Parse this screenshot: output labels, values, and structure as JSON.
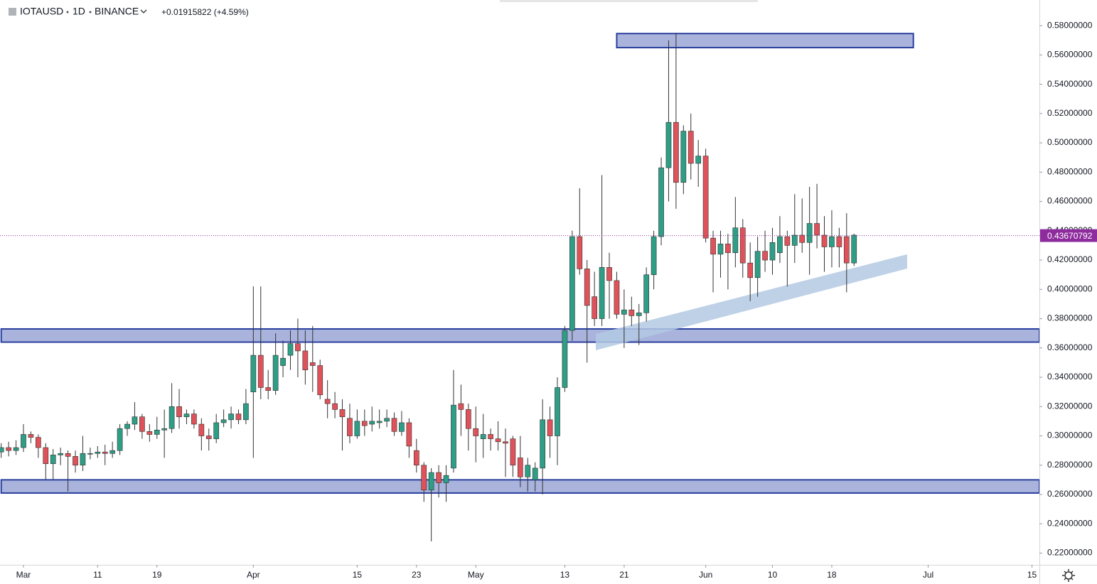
{
  "header": {
    "symbol": "IOTAUSD",
    "interval": "1D",
    "exchange": "BINANCE",
    "change": "+0.01915822 (+4.59%)"
  },
  "chart_data": {
    "type": "candlestick",
    "up_color": "#2e9e86",
    "down_color": "#e0525a",
    "wick_color": "#333333",
    "ylim": [
      0.212,
      0.5975
    ],
    "xlim": [
      "02-26",
      "07-16"
    ],
    "grid": false,
    "yticks": [
      {
        "value": 0.22,
        "label": "0.22000000"
      },
      {
        "value": 0.24,
        "label": "0.24000000"
      },
      {
        "value": 0.26,
        "label": "0.26000000"
      },
      {
        "value": 0.28,
        "label": "0.28000000"
      },
      {
        "value": 0.3,
        "label": "0.30000000"
      },
      {
        "value": 0.32,
        "label": "0.32000000"
      },
      {
        "value": 0.34,
        "label": "0.34000000"
      },
      {
        "value": 0.36,
        "label": "0.36000000"
      },
      {
        "value": 0.38,
        "label": "0.38000000"
      },
      {
        "value": 0.4,
        "label": "0.40000000"
      },
      {
        "value": 0.42,
        "label": "0.42000000"
      },
      {
        "value": 0.44,
        "label": "0.44000000"
      },
      {
        "value": 0.46,
        "label": "0.46000000"
      },
      {
        "value": 0.48,
        "label": "0.48000000"
      },
      {
        "value": 0.5,
        "label": "0.50000000"
      },
      {
        "value": 0.52,
        "label": "0.52000000"
      },
      {
        "value": 0.54,
        "label": "0.54000000"
      },
      {
        "value": 0.56,
        "label": "0.56000000"
      },
      {
        "value": 0.58,
        "label": "0.58000000"
      }
    ],
    "xticks": [
      {
        "value": "03-01",
        "label": "Mar"
      },
      {
        "value": "03-11",
        "label": "11"
      },
      {
        "value": "03-19",
        "label": "19"
      },
      {
        "value": "04-01",
        "label": "Apr"
      },
      {
        "value": "04-15",
        "label": "15"
      },
      {
        "value": "04-23",
        "label": "23"
      },
      {
        "value": "05-01",
        "label": "May"
      },
      {
        "value": "05-13",
        "label": "13"
      },
      {
        "value": "05-21",
        "label": "21"
      },
      {
        "value": "06-01",
        "label": "Jun"
      },
      {
        "value": "06-10",
        "label": "10"
      },
      {
        "value": "06-18",
        "label": "18"
      },
      {
        "value": "07-01",
        "label": "Jul"
      },
      {
        "value": "07-15",
        "label": "15"
      }
    ],
    "last_price": {
      "value": 0.43670792,
      "label": "0.43670792",
      "color": "#8e2c9e"
    },
    "zones": [
      {
        "low": 0.565,
        "high": 0.5746,
        "from": "05-20",
        "to": "06-29",
        "fill": "#9aa6d6",
        "stroke": "#2a3f9f"
      },
      {
        "low": 0.364,
        "high": 0.373,
        "from": "02-26",
        "to": "07-16",
        "fill": "#9aa6d6",
        "stroke": "#2a3f9f"
      },
      {
        "low": 0.261,
        "high": 0.27,
        "from": "02-26",
        "to": "07-16",
        "fill": "#9aa6d6",
        "stroke": "#2a3f9f"
      }
    ],
    "candles": [
      {
        "date": "02-26",
        "open": 0.289,
        "high": 0.295,
        "low": 0.285,
        "close": 0.292
      },
      {
        "date": "02-27",
        "open": 0.292,
        "high": 0.296,
        "low": 0.286,
        "close": 0.29
      },
      {
        "date": "02-28",
        "open": 0.29,
        "high": 0.297,
        "low": 0.287,
        "close": 0.292
      },
      {
        "date": "03-01",
        "open": 0.292,
        "high": 0.308,
        "low": 0.289,
        "close": 0.301
      },
      {
        "date": "03-02",
        "open": 0.301,
        "high": 0.303,
        "low": 0.295,
        "close": 0.299
      },
      {
        "date": "03-03",
        "open": 0.299,
        "high": 0.301,
        "low": 0.285,
        "close": 0.292
      },
      {
        "date": "03-04",
        "open": 0.292,
        "high": 0.295,
        "low": 0.27,
        "close": 0.281
      },
      {
        "date": "03-05",
        "open": 0.281,
        "high": 0.291,
        "low": 0.27,
        "close": 0.287
      },
      {
        "date": "03-06",
        "open": 0.287,
        "high": 0.292,
        "low": 0.28,
        "close": 0.288
      },
      {
        "date": "03-07",
        "open": 0.288,
        "high": 0.29,
        "low": 0.262,
        "close": 0.286
      },
      {
        "date": "03-08",
        "open": 0.286,
        "high": 0.29,
        "low": 0.275,
        "close": 0.28
      },
      {
        "date": "03-09",
        "open": 0.28,
        "high": 0.3,
        "low": 0.276,
        "close": 0.288
      },
      {
        "date": "03-10",
        "open": 0.288,
        "high": 0.292,
        "low": 0.284,
        "close": 0.288
      },
      {
        "date": "03-11",
        "open": 0.288,
        "high": 0.293,
        "low": 0.285,
        "close": 0.289
      },
      {
        "date": "03-12",
        "open": 0.289,
        "high": 0.294,
        "low": 0.28,
        "close": 0.288
      },
      {
        "date": "03-13",
        "open": 0.288,
        "high": 0.296,
        "low": 0.285,
        "close": 0.29
      },
      {
        "date": "03-14",
        "open": 0.29,
        "high": 0.308,
        "low": 0.287,
        "close": 0.305
      },
      {
        "date": "03-15",
        "open": 0.305,
        "high": 0.31,
        "low": 0.3,
        "close": 0.308
      },
      {
        "date": "03-16",
        "open": 0.308,
        "high": 0.323,
        "low": 0.304,
        "close": 0.313
      },
      {
        "date": "03-17",
        "open": 0.313,
        "high": 0.315,
        "low": 0.298,
        "close": 0.303
      },
      {
        "date": "03-18",
        "open": 0.303,
        "high": 0.308,
        "low": 0.296,
        "close": 0.301
      },
      {
        "date": "03-19",
        "open": 0.301,
        "high": 0.313,
        "low": 0.298,
        "close": 0.304
      },
      {
        "date": "03-20",
        "open": 0.304,
        "high": 0.318,
        "low": 0.285,
        "close": 0.305
      },
      {
        "date": "03-21",
        "open": 0.305,
        "high": 0.336,
        "low": 0.302,
        "close": 0.32
      },
      {
        "date": "03-22",
        "open": 0.32,
        "high": 0.332,
        "low": 0.305,
        "close": 0.313
      },
      {
        "date": "03-23",
        "open": 0.313,
        "high": 0.318,
        "low": 0.308,
        "close": 0.315
      },
      {
        "date": "03-24",
        "open": 0.315,
        "high": 0.318,
        "low": 0.305,
        "close": 0.308
      },
      {
        "date": "03-25",
        "open": 0.308,
        "high": 0.312,
        "low": 0.29,
        "close": 0.3
      },
      {
        "date": "03-26",
        "open": 0.3,
        "high": 0.305,
        "low": 0.29,
        "close": 0.298
      },
      {
        "date": "03-27",
        "open": 0.298,
        "high": 0.315,
        "low": 0.295,
        "close": 0.309
      },
      {
        "date": "03-28",
        "open": 0.309,
        "high": 0.318,
        "low": 0.306,
        "close": 0.311
      },
      {
        "date": "03-29",
        "open": 0.311,
        "high": 0.32,
        "low": 0.305,
        "close": 0.315
      },
      {
        "date": "03-30",
        "open": 0.315,
        "high": 0.318,
        "low": 0.308,
        "close": 0.311
      },
      {
        "date": "03-31",
        "open": 0.311,
        "high": 0.332,
        "low": 0.308,
        "close": 0.322
      },
      {
        "date": "04-01",
        "open": 0.33,
        "high": 0.402,
        "low": 0.285,
        "close": 0.355
      },
      {
        "date": "04-02",
        "open": 0.355,
        "high": 0.402,
        "low": 0.325,
        "close": 0.333
      },
      {
        "date": "04-03",
        "open": 0.333,
        "high": 0.345,
        "low": 0.325,
        "close": 0.331
      },
      {
        "date": "04-04",
        "open": 0.331,
        "high": 0.37,
        "low": 0.328,
        "close": 0.355
      },
      {
        "date": "04-05",
        "open": 0.348,
        "high": 0.365,
        "low": 0.34,
        "close": 0.353
      },
      {
        "date": "04-06",
        "open": 0.355,
        "high": 0.372,
        "low": 0.345,
        "close": 0.363
      },
      {
        "date": "04-07",
        "open": 0.363,
        "high": 0.38,
        "low": 0.34,
        "close": 0.358
      },
      {
        "date": "04-08",
        "open": 0.358,
        "high": 0.372,
        "low": 0.335,
        "close": 0.345
      },
      {
        "date": "04-09",
        "open": 0.35,
        "high": 0.375,
        "low": 0.33,
        "close": 0.348
      },
      {
        "date": "04-10",
        "open": 0.348,
        "high": 0.352,
        "low": 0.325,
        "close": 0.328
      },
      {
        "date": "04-11",
        "open": 0.325,
        "high": 0.338,
        "low": 0.312,
        "close": 0.322
      },
      {
        "date": "04-12",
        "open": 0.322,
        "high": 0.33,
        "low": 0.312,
        "close": 0.318
      },
      {
        "date": "04-13",
        "open": 0.318,
        "high": 0.325,
        "low": 0.29,
        "close": 0.313
      },
      {
        "date": "04-14",
        "open": 0.312,
        "high": 0.322,
        "low": 0.295,
        "close": 0.3
      },
      {
        "date": "04-15",
        "open": 0.3,
        "high": 0.318,
        "low": 0.298,
        "close": 0.31
      },
      {
        "date": "04-16",
        "open": 0.31,
        "high": 0.318,
        "low": 0.3,
        "close": 0.307
      },
      {
        "date": "04-17",
        "open": 0.308,
        "high": 0.32,
        "low": 0.303,
        "close": 0.31
      },
      {
        "date": "04-18",
        "open": 0.309,
        "high": 0.318,
        "low": 0.305,
        "close": 0.31
      },
      {
        "date": "04-19",
        "open": 0.31,
        "high": 0.318,
        "low": 0.306,
        "close": 0.312
      },
      {
        "date": "04-20",
        "open": 0.312,
        "high": 0.316,
        "low": 0.3,
        "close": 0.303
      },
      {
        "date": "04-21",
        "open": 0.303,
        "high": 0.317,
        "low": 0.3,
        "close": 0.309
      },
      {
        "date": "04-22",
        "open": 0.309,
        "high": 0.312,
        "low": 0.285,
        "close": 0.293
      },
      {
        "date": "04-23",
        "open": 0.29,
        "high": 0.298,
        "low": 0.275,
        "close": 0.28
      },
      {
        "date": "04-24",
        "open": 0.28,
        "high": 0.282,
        "low": 0.255,
        "close": 0.263
      },
      {
        "date": "04-25",
        "open": 0.263,
        "high": 0.278,
        "low": 0.228,
        "close": 0.275
      },
      {
        "date": "04-26",
        "open": 0.275,
        "high": 0.28,
        "low": 0.258,
        "close": 0.268
      },
      {
        "date": "04-27",
        "open": 0.268,
        "high": 0.28,
        "low": 0.255,
        "close": 0.273
      },
      {
        "date": "04-28",
        "open": 0.278,
        "high": 0.345,
        "low": 0.275,
        "close": 0.321
      },
      {
        "date": "04-29",
        "open": 0.322,
        "high": 0.335,
        "low": 0.3,
        "close": 0.318
      },
      {
        "date": "04-30",
        "open": 0.318,
        "high": 0.322,
        "low": 0.29,
        "close": 0.305
      },
      {
        "date": "05-01",
        "open": 0.305,
        "high": 0.32,
        "low": 0.282,
        "close": 0.3
      },
      {
        "date": "05-02",
        "open": 0.298,
        "high": 0.315,
        "low": 0.285,
        "close": 0.301
      },
      {
        "date": "05-03",
        "open": 0.301,
        "high": 0.305,
        "low": 0.29,
        "close": 0.298
      },
      {
        "date": "05-04",
        "open": 0.298,
        "high": 0.31,
        "low": 0.29,
        "close": 0.296
      },
      {
        "date": "05-05",
        "open": 0.296,
        "high": 0.305,
        "low": 0.272,
        "close": 0.295
      },
      {
        "date": "05-06",
        "open": 0.298,
        "high": 0.3,
        "low": 0.272,
        "close": 0.28
      },
      {
        "date": "05-07",
        "open": 0.285,
        "high": 0.3,
        "low": 0.265,
        "close": 0.272
      },
      {
        "date": "05-08",
        "open": 0.272,
        "high": 0.285,
        "low": 0.262,
        "close": 0.28
      },
      {
        "date": "05-09",
        "open": 0.27,
        "high": 0.282,
        "low": 0.262,
        "close": 0.278
      },
      {
        "date": "05-10",
        "open": 0.278,
        "high": 0.325,
        "low": 0.26,
        "close": 0.311
      },
      {
        "date": "05-11",
        "open": 0.311,
        "high": 0.32,
        "low": 0.285,
        "close": 0.3
      },
      {
        "date": "05-12",
        "open": 0.3,
        "high": 0.34,
        "low": 0.28,
        "close": 0.333
      },
      {
        "date": "05-13",
        "open": 0.333,
        "high": 0.375,
        "low": 0.33,
        "close": 0.372
      },
      {
        "date": "05-14",
        "open": 0.372,
        "high": 0.44,
        "low": 0.365,
        "close": 0.436
      },
      {
        "date": "05-15",
        "open": 0.436,
        "high": 0.469,
        "low": 0.41,
        "close": 0.414
      },
      {
        "date": "05-16",
        "open": 0.414,
        "high": 0.42,
        "low": 0.35,
        "close": 0.389
      },
      {
        "date": "05-17",
        "open": 0.395,
        "high": 0.412,
        "low": 0.375,
        "close": 0.38
      },
      {
        "date": "05-18",
        "open": 0.38,
        "high": 0.478,
        "low": 0.375,
        "close": 0.415
      },
      {
        "date": "05-19",
        "open": 0.415,
        "high": 0.425,
        "low": 0.38,
        "close": 0.406
      },
      {
        "date": "05-20",
        "open": 0.406,
        "high": 0.412,
        "low": 0.38,
        "close": 0.383
      },
      {
        "date": "05-21",
        "open": 0.383,
        "high": 0.4,
        "low": 0.36,
        "close": 0.386
      },
      {
        "date": "05-22",
        "open": 0.386,
        "high": 0.395,
        "low": 0.375,
        "close": 0.382
      },
      {
        "date": "05-23",
        "open": 0.382,
        "high": 0.39,
        "low": 0.362,
        "close": 0.384
      },
      {
        "date": "05-24",
        "open": 0.384,
        "high": 0.415,
        "low": 0.378,
        "close": 0.41
      },
      {
        "date": "05-25",
        "open": 0.41,
        "high": 0.44,
        "low": 0.4,
        "close": 0.436
      },
      {
        "date": "05-26",
        "open": 0.436,
        "high": 0.49,
        "low": 0.43,
        "close": 0.483
      },
      {
        "date": "05-27",
        "open": 0.483,
        "high": 0.57,
        "low": 0.46,
        "close": 0.514
      },
      {
        "date": "05-28",
        "open": 0.514,
        "high": 0.575,
        "low": 0.455,
        "close": 0.473
      },
      {
        "date": "05-29",
        "open": 0.473,
        "high": 0.512,
        "low": 0.465,
        "close": 0.508
      },
      {
        "date": "05-30",
        "open": 0.508,
        "high": 0.52,
        "low": 0.475,
        "close": 0.486
      },
      {
        "date": "05-31",
        "open": 0.486,
        "high": 0.502,
        "low": 0.47,
        "close": 0.491
      },
      {
        "date": "06-01",
        "open": 0.491,
        "high": 0.496,
        "low": 0.432,
        "close": 0.435
      },
      {
        "date": "06-02",
        "open": 0.435,
        "high": 0.44,
        "low": 0.398,
        "close": 0.424
      },
      {
        "date": "06-03",
        "open": 0.424,
        "high": 0.44,
        "low": 0.408,
        "close": 0.431
      },
      {
        "date": "06-04",
        "open": 0.431,
        "high": 0.438,
        "low": 0.4,
        "close": 0.425
      },
      {
        "date": "06-05",
        "open": 0.425,
        "high": 0.463,
        "low": 0.415,
        "close": 0.442
      },
      {
        "date": "06-06",
        "open": 0.442,
        "high": 0.448,
        "low": 0.408,
        "close": 0.418
      },
      {
        "date": "06-07",
        "open": 0.418,
        "high": 0.432,
        "low": 0.392,
        "close": 0.408
      },
      {
        "date": "06-08",
        "open": 0.408,
        "high": 0.436,
        "low": 0.395,
        "close": 0.426
      },
      {
        "date": "06-09",
        "open": 0.426,
        "high": 0.44,
        "low": 0.412,
        "close": 0.42
      },
      {
        "date": "06-10",
        "open": 0.42,
        "high": 0.442,
        "low": 0.41,
        "close": 0.432
      },
      {
        "date": "06-11",
        "open": 0.425,
        "high": 0.45,
        "low": 0.418,
        "close": 0.436
      },
      {
        "date": "06-12",
        "open": 0.436,
        "high": 0.44,
        "low": 0.402,
        "close": 0.43
      },
      {
        "date": "06-13",
        "open": 0.43,
        "high": 0.465,
        "low": 0.418,
        "close": 0.437
      },
      {
        "date": "06-14",
        "open": 0.437,
        "high": 0.462,
        "low": 0.425,
        "close": 0.432
      },
      {
        "date": "06-15",
        "open": 0.432,
        "high": 0.47,
        "low": 0.41,
        "close": 0.445
      },
      {
        "date": "06-16",
        "open": 0.445,
        "high": 0.472,
        "low": 0.428,
        "close": 0.437
      },
      {
        "date": "06-17",
        "open": 0.437,
        "high": 0.45,
        "low": 0.412,
        "close": 0.429
      },
      {
        "date": "06-18",
        "open": 0.429,
        "high": 0.454,
        "low": 0.415,
        "close": 0.436
      },
      {
        "date": "06-19",
        "open": 0.436,
        "high": 0.442,
        "low": 0.415,
        "close": 0.429
      },
      {
        "date": "06-20",
        "open": 0.436,
        "high": 0.452,
        "low": 0.398,
        "close": 0.418
      },
      {
        "date": "06-21",
        "open": 0.418,
        "high": 0.438,
        "low": 0.416,
        "close": 0.437
      }
    ]
  }
}
